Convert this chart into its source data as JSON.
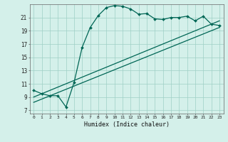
{
  "title": "",
  "xlabel": "Humidex (Indice chaleur)",
  "bg_color": "#d4f0ea",
  "grid_color": "#9ecfc5",
  "line_color": "#006655",
  "xlim": [
    -0.5,
    23.5
  ],
  "ylim": [
    6.5,
    23.0
  ],
  "yticks": [
    7,
    9,
    11,
    13,
    15,
    17,
    19,
    21
  ],
  "xticks": [
    0,
    1,
    2,
    3,
    4,
    5,
    6,
    7,
    8,
    9,
    10,
    11,
    12,
    13,
    14,
    15,
    16,
    17,
    18,
    19,
    20,
    21,
    22,
    23
  ],
  "main_x": [
    0,
    1,
    2,
    3,
    4,
    5,
    6,
    7,
    8,
    9,
    10,
    11,
    12,
    13,
    14,
    15,
    16,
    17,
    18,
    19,
    20,
    21,
    22,
    23
  ],
  "main_y": [
    10.0,
    9.5,
    9.2,
    9.2,
    7.5,
    11.2,
    16.5,
    19.5,
    21.3,
    22.5,
    22.8,
    22.7,
    22.3,
    21.5,
    21.6,
    20.8,
    20.7,
    21.0,
    21.0,
    21.2,
    20.5,
    21.2,
    20.0,
    19.8
  ],
  "line2_x": [
    0,
    23
  ],
  "line2_y": [
    9.0,
    20.5
  ],
  "line3_x": [
    0,
    23
  ],
  "line3_y": [
    8.2,
    19.5
  ]
}
